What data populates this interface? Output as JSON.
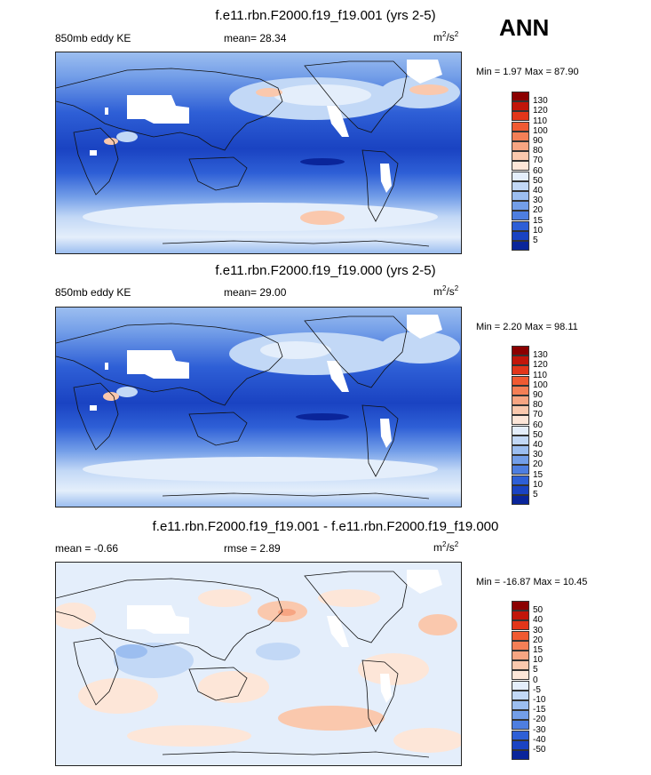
{
  "season": "ANN",
  "panels": [
    {
      "title": "f.e11.rbn.F2000.f19_f19.001 (yrs 2-5)",
      "left_label": "850mb eddy KE",
      "center_label": "mean=  28.34",
      "units_base": "m",
      "units_sup1": "2",
      "units_mid": "/s",
      "units_sup2": "2",
      "minmax": "Min =   1.97 Max =  87.90",
      "colorbar_ticks": [
        "130",
        "120",
        "110",
        "100",
        "90",
        "80",
        "70",
        "60",
        "50",
        "40",
        "30",
        "20",
        "15",
        "10",
        "5"
      ],
      "colorbar_colors": [
        "#8b0000",
        "#c1160a",
        "#e2361a",
        "#f05a32",
        "#f47f56",
        "#f7a582",
        "#fac8ad",
        "#fde6d8",
        "#e4eefb",
        "#c2d8f6",
        "#9cbef0",
        "#739ee8",
        "#4e7ee0",
        "#2e5fd6",
        "#1a43c2",
        "#0a259a"
      ]
    },
    {
      "title": "f.e11.rbn.F2000.f19_f19.000 (yrs 2-5)",
      "left_label": "850mb eddy KE",
      "center_label": "mean=  29.00",
      "units_base": "m",
      "units_sup1": "2",
      "units_mid": "/s",
      "units_sup2": "2",
      "minmax": "Min =   2.20 Max =  98.11",
      "colorbar_ticks": [
        "130",
        "120",
        "110",
        "100",
        "90",
        "80",
        "70",
        "60",
        "50",
        "40",
        "30",
        "20",
        "15",
        "10",
        "5"
      ],
      "colorbar_colors": [
        "#8b0000",
        "#c1160a",
        "#e2361a",
        "#f05a32",
        "#f47f56",
        "#f7a582",
        "#fac8ad",
        "#fde6d8",
        "#e4eefb",
        "#c2d8f6",
        "#9cbef0",
        "#739ee8",
        "#4e7ee0",
        "#2e5fd6",
        "#1a43c2",
        "#0a259a"
      ]
    },
    {
      "title": "f.e11.rbn.F2000.f19_f19.001 - f.e11.rbn.F2000.f19_f19.000",
      "left_label": "mean =  -0.66",
      "center_label": "rmse =   2.89",
      "units_base": "m",
      "units_sup1": "2",
      "units_mid": "/s",
      "units_sup2": "2",
      "minmax": "Min = -16.87 Max =  10.45",
      "colorbar_ticks": [
        "50",
        "40",
        "30",
        "20",
        "15",
        "10",
        "5",
        "0",
        "-5",
        "-10",
        "-15",
        "-20",
        "-30",
        "-40",
        "-50"
      ],
      "colorbar_colors": [
        "#8b0000",
        "#c1160a",
        "#e2361a",
        "#f05a32",
        "#f47f56",
        "#f7a582",
        "#fac8ad",
        "#fde6d8",
        "#e4eefb",
        "#c2d8f6",
        "#9cbef0",
        "#739ee8",
        "#4e7ee0",
        "#2e5fd6",
        "#1a43c2",
        "#0a259a"
      ]
    }
  ],
  "colors": {
    "ocean_deep": "#1a43c2",
    "ocean_mid": "#2e5fd6",
    "ocean_light": "#739ee8",
    "pale_blue": "#c2d8f6",
    "pale_red": "#fac8ad",
    "diff_bg": "#e4eefb",
    "land_outline": "#111111",
    "missing": "#ffffff"
  }
}
